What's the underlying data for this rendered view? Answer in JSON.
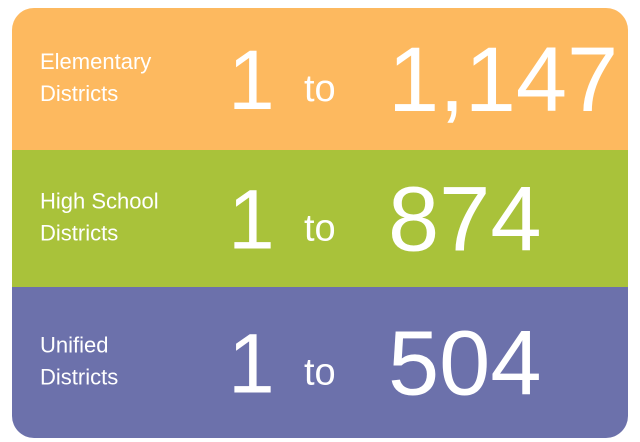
{
  "rows": [
    {
      "label": [
        "Elementary",
        "Districts"
      ],
      "from": "1",
      "sep": "to",
      "to": "1,147",
      "color": "#fdb95f"
    },
    {
      "label": [
        "High School",
        "Districts"
      ],
      "from": "1",
      "sep": "to",
      "to": "874",
      "color": "#a9c23a"
    },
    {
      "label": [
        "Unified",
        "Districts"
      ],
      "from": "1",
      "sep": "to",
      "to": "504",
      "color": "#6c71ab"
    }
  ]
}
